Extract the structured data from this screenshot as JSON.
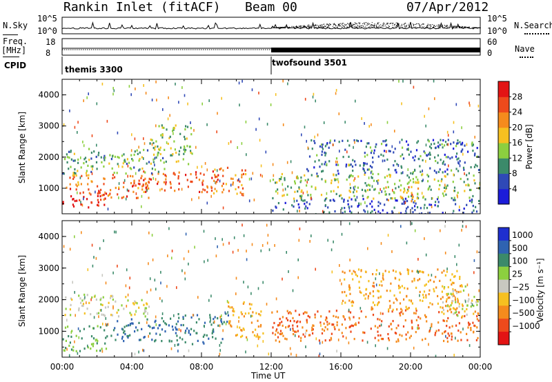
{
  "header": {
    "station": "Rankin Inlet (fitACF)",
    "beam": "Beam 00",
    "date": "07/Apr/2012"
  },
  "nsky_panel": {
    "left_label": "N.Sky",
    "right_label": "N.Search",
    "left_ticks": [
      "10^5",
      "10^0"
    ],
    "right_ticks": [
      "10^5",
      "10^0"
    ]
  },
  "freq_panel": {
    "left_label_top": "Freq.",
    "left_label_unit": "[MHz]",
    "right_label": "Nave",
    "left_ticks": [
      "18",
      "8"
    ],
    "right_ticks": [
      "60",
      "0"
    ]
  },
  "cpid_panel": {
    "label": "CPID",
    "programs": [
      {
        "name": "themis 3300",
        "start_hour": 0
      },
      {
        "name": "twofsound 3501",
        "start_hour": 12
      }
    ]
  },
  "power_panel": {
    "ylabel": "Slant Range [km]",
    "yticks": [
      "1000",
      "2000",
      "3000",
      "4000"
    ],
    "colorbar_label": "Power [dB]",
    "colorbar_ticks": [
      "4",
      "8",
      "12",
      "16",
      "20",
      "24",
      "28"
    ],
    "colorbar_colors": [
      "#1c1cd9",
      "#2f49b7",
      "#3b8a6a",
      "#8ccf3f",
      "#f6c020",
      "#f58b1d",
      "#ee4a1c",
      "#e31414"
    ]
  },
  "velocity_panel": {
    "ylabel": "Slant Range [km]",
    "yticks": [
      "1000",
      "2000",
      "3000",
      "4000"
    ],
    "colorbar_label": "Velocity [m s⁻¹]",
    "colorbar_ticks": [
      "1000",
      "500",
      "100",
      "25",
      "−25",
      "−100",
      "−500",
      "−1000"
    ],
    "colorbar_colors": [
      "#1f2fcf",
      "#2f63b1",
      "#3b8a6a",
      "#8ccf3f",
      "#c8c8c0",
      "#f6c020",
      "#f58b1d",
      "#ee4a1c",
      "#e31414"
    ]
  },
  "time_axis": {
    "xlabel": "Time UT",
    "ticks": [
      "00:00",
      "04:00",
      "08:00",
      "12:00",
      "16:00",
      "20:00",
      "00:00"
    ]
  },
  "chart_data": {
    "type": "heatmap",
    "x_range_hours": [
      0,
      24
    ],
    "y_range_km": [
      180,
      4500
    ],
    "power_blobs": [
      {
        "t0": 0.0,
        "t1": 2.5,
        "r0": 350,
        "r1": 1100,
        "value": 28
      },
      {
        "t0": 0.2,
        "t1": 2.0,
        "r0": 1100,
        "r1": 1600,
        "value": 20
      },
      {
        "t0": 2.0,
        "t1": 5.0,
        "r0": 700,
        "r1": 1500,
        "value": 24
      },
      {
        "t0": 4.5,
        "t1": 9.0,
        "r0": 900,
        "r1": 1600,
        "value": 26
      },
      {
        "t0": 8.5,
        "t1": 10.5,
        "r0": 800,
        "r1": 1700,
        "value": 22
      },
      {
        "t0": 0.0,
        "t1": 6.0,
        "r0": 1500,
        "r1": 2300,
        "value": 12
      },
      {
        "t0": 5.0,
        "t1": 7.5,
        "r0": 1800,
        "r1": 3100,
        "value": 14
      },
      {
        "t0": 12.0,
        "t1": 24.0,
        "r0": 700,
        "r1": 1500,
        "value": 14
      },
      {
        "t0": 14.0,
        "t1": 24.0,
        "r0": 1500,
        "r1": 2600,
        "value": 8
      },
      {
        "t0": 12.0,
        "t1": 24.0,
        "r0": 200,
        "r1": 700,
        "value": 6
      },
      {
        "t0": 18.5,
        "t1": 20.5,
        "r0": 600,
        "r1": 1100,
        "value": 20
      }
    ],
    "velocity_blobs": [
      {
        "t0": 0.0,
        "t1": 2.5,
        "r0": 400,
        "r1": 1200,
        "value": 100
      },
      {
        "t0": 2.5,
        "t1": 6.5,
        "r0": 700,
        "r1": 1500,
        "value": 500
      },
      {
        "t0": 6.5,
        "t1": 9.5,
        "r0": 600,
        "r1": 1600,
        "value": 500
      },
      {
        "t0": 0.0,
        "t1": 5.0,
        "r0": 1500,
        "r1": 2200,
        "value": 0
      },
      {
        "t0": 9.5,
        "t1": 11.5,
        "r0": 800,
        "r1": 2000,
        "value": -100
      },
      {
        "t0": 12.0,
        "t1": 24.0,
        "r0": 700,
        "r1": 1700,
        "value": -500
      },
      {
        "t0": 16.0,
        "t1": 23.0,
        "r0": 1700,
        "r1": 3000,
        "value": -100
      },
      {
        "t0": 21.5,
        "t1": 24.0,
        "r0": 1500,
        "r1": 2500,
        "value": 0
      }
    ]
  }
}
